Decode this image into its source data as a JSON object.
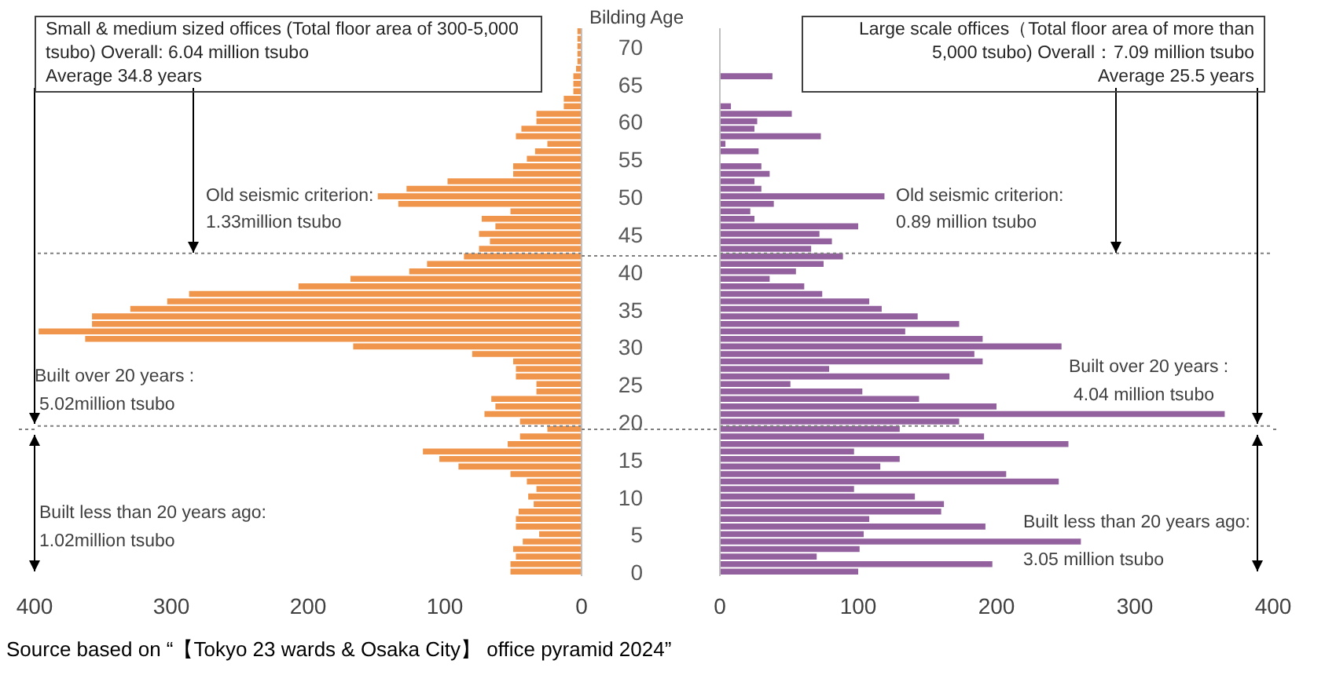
{
  "chart_data": [
    {
      "type": "bar",
      "orientation": "horizontal",
      "title": "Small & medium sized offices (Total floor area of 300-5,000 tsubo) Overall: 6.04 million tsubo",
      "subtitle": "Average 34.8 years",
      "color": "#f0954c",
      "x": [
        0,
        1,
        2,
        3,
        4,
        5,
        6,
        7,
        8,
        9,
        10,
        11,
        12,
        13,
        14,
        15,
        16,
        17,
        18,
        19,
        20,
        21,
        22,
        23,
        24,
        25,
        26,
        27,
        28,
        29,
        30,
        31,
        32,
        33,
        34,
        35,
        36,
        37,
        38,
        39,
        40,
        41,
        42,
        43,
        44,
        45,
        46,
        47,
        48,
        49,
        50,
        51,
        52,
        53,
        54,
        55,
        56,
        57,
        58,
        59,
        60,
        61,
        62,
        63,
        64,
        65,
        66,
        67,
        68,
        69,
        70,
        71,
        72
      ],
      "values": [
        52,
        52,
        48,
        50,
        43,
        31,
        48,
        48,
        46,
        35,
        39,
        33,
        40,
        52,
        90,
        104,
        116,
        54,
        45,
        25,
        45,
        71,
        63,
        66,
        33,
        33,
        48,
        48,
        50,
        80,
        167,
        363,
        397,
        358,
        358,
        330,
        303,
        287,
        207,
        169,
        126,
        113,
        86,
        75,
        67,
        75,
        63,
        73,
        52,
        134,
        149,
        128,
        98,
        50,
        50,
        40,
        34,
        25,
        48,
        44,
        33,
        33,
        13,
        13,
        6,
        6,
        6,
        4,
        3,
        3,
        3,
        3,
        3
      ],
      "xlim": [
        400,
        0
      ],
      "xticks": [
        400,
        300,
        200,
        100,
        0
      ],
      "ylim": [
        -0.5,
        72.5
      ],
      "yticks": [
        0,
        5,
        10,
        15,
        20,
        25,
        30,
        35,
        40,
        45,
        50,
        55,
        60,
        65,
        70
      ],
      "tick_labels": "x",
      "ref_lines": [
        {
          "axis": "y",
          "value": 42.5,
          "color": "#7f7f7f",
          "line_style": "dotted"
        },
        {
          "axis": "y",
          "value": 19.5,
          "color": "#7f7f7f",
          "line_style": "dotted"
        }
      ],
      "annotations": [
        "Old seismic criterion:",
        "1.33million tsubo",
        "Built over 20 years :",
        "5.02million tsubo",
        "Built less than 20 years ago:",
        "1.02million tsubo",
        "Source based on “【Tokyo 23 wards & Osaka City】 office pyramid 2024”"
      ]
    },
    {
      "type": "bar",
      "orientation": "horizontal",
      "title": "Large scale offices（Total floor area of more than 5,000 tsubo) Overall：7.09 million tsubo",
      "subtitle": "Average 25.5 years",
      "ylabel": "Bilding Age",
      "color": "#93619e",
      "x": [
        0,
        1,
        2,
        3,
        4,
        5,
        6,
        7,
        8,
        9,
        10,
        11,
        12,
        13,
        14,
        15,
        16,
        17,
        18,
        19,
        20,
        21,
        22,
        23,
        24,
        25,
        26,
        27,
        28,
        29,
        30,
        31,
        32,
        33,
        34,
        35,
        36,
        37,
        38,
        39,
        40,
        41,
        42,
        43,
        44,
        45,
        46,
        47,
        48,
        49,
        50,
        51,
        52,
        53,
        54,
        55,
        56,
        57,
        58,
        59,
        60,
        61,
        62,
        63,
        64,
        65,
        66,
        67,
        68,
        69,
        70,
        71,
        72
      ],
      "values": [
        100,
        197,
        70,
        101,
        261,
        104,
        192,
        108,
        160,
        162,
        141,
        97,
        245,
        207,
        116,
        130,
        97,
        252,
        191,
        130,
        173,
        365,
        200,
        144,
        103,
        51,
        166,
        79,
        190,
        184,
        247,
        190,
        134,
        173,
        143,
        117,
        108,
        74,
        61,
        36,
        55,
        75,
        89,
        66,
        81,
        72,
        100,
        25,
        22,
        39,
        119,
        30,
        25,
        36,
        30,
        0,
        28,
        4,
        73,
        25,
        27,
        52,
        8,
        0,
        0,
        0,
        38,
        0,
        0,
        0,
        0,
        0,
        0
      ],
      "xlim": [
        0,
        400
      ],
      "xticks": [
        0,
        100,
        200,
        300,
        400
      ],
      "ylim": [
        -0.5,
        72.5
      ],
      "yticks": [
        0,
        5,
        10,
        15,
        20,
        25,
        30,
        35,
        40,
        45,
        50,
        55,
        60,
        65,
        70
      ],
      "ref_lines": [
        {
          "axis": "y",
          "value": 42.5,
          "color": "#7f7f7f",
          "line_style": "dotted"
        },
        {
          "axis": "y",
          "value": 19.5,
          "color": "#7f7f7f",
          "line_style": "dotted"
        }
      ],
      "annotations": [
        "Old seismic criterion:",
        "0.89 million tsubo",
        "Built over 20 years :",
        "4.04 million tsubo",
        "Built less than 20 years ago:",
        "3.05 million tsubo"
      ]
    }
  ]
}
